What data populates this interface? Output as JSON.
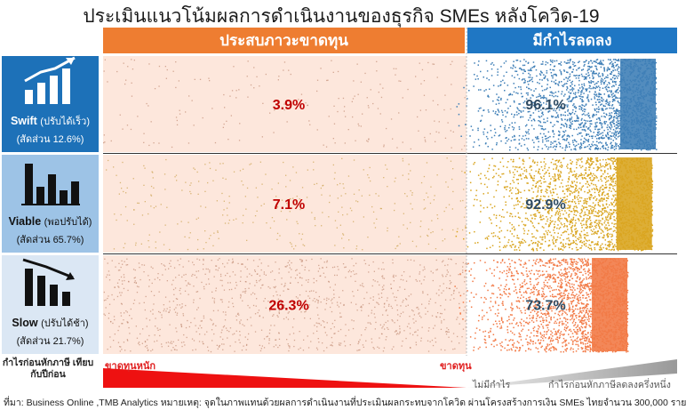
{
  "title": "ประเมินแนวโน้มผลการดำเนินงานของธุรกิจ SMEs หลังโควิด-19",
  "headers": {
    "loss": "ประสบภาวะขาดทุน",
    "profit_down": "มีกำไรลดลง"
  },
  "groups": [
    {
      "name": "Swift",
      "name_th": "(ปรับได้เร็ว)",
      "share": "(สัดส่วน 12.6%)"
    },
    {
      "name": "Viable",
      "name_th": "(พอปรับได้)",
      "share": "(สัดส่วน 65.7%)"
    },
    {
      "name": "Slow",
      "name_th": "(ปรับได้ช้า)",
      "share": "(สัดส่วน 21.7%)"
    }
  ],
  "chart_data": {
    "type": "bar",
    "categories": [
      "Swift",
      "Viable",
      "Slow"
    ],
    "series": [
      {
        "name": "ประสบภาวะขาดทุน",
        "values": [
          3.9,
          7.1,
          26.3
        ],
        "labels": [
          "3.9%",
          "7.1%",
          "26.3%"
        ]
      },
      {
        "name": "มีกำไรลดลง",
        "values": [
          96.1,
          92.9,
          73.7
        ],
        "labels": [
          "96.1%",
          "92.9%",
          "73.7%"
        ]
      }
    ],
    "colors": {
      "loss_bg": "#fde7dc",
      "swift": "#3f7fb7",
      "viable": "#d9a520",
      "slow": "#f27a46",
      "loss_dot": "#c08a72"
    },
    "row_extent_relative": [
      1.0,
      0.98,
      0.85
    ]
  },
  "bottom": {
    "axis_label": "กำไรก่อนหักภาษี เทียบกับปีก่อน",
    "heavy_loss": "ขาดทุนหนัก",
    "loss": "ขาดทุน",
    "no_profit": "ไม่มีกำไร",
    "half_profit": "กำไรก่อนหักภาษีลดลงครึ่งหนึ่ง"
  },
  "source": "ที่มา: Business Online ,TMB Analytics  หมายเหตุ: จุดในภาพแทนด้วยผลการดำเนินงานที่ประเมินผลกระทบจากโควิด  ผ่านโครงสร้างการเงิน  SMEs ไทยจำนวน 300,000 ราย"
}
